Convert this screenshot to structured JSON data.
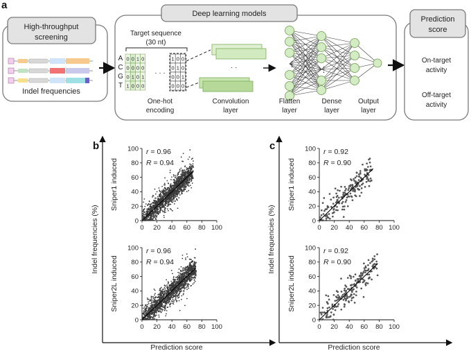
{
  "panel_a": {
    "letter": "a",
    "screening": {
      "title_line1": "High-throughput",
      "title_line2": "screening",
      "caption": "Indel frequencies"
    },
    "models": {
      "title": "Deep learning models",
      "target_line1": "Target sequence",
      "target_line2": "(30 nt)",
      "bases": [
        "A",
        "C",
        "G",
        "T"
      ],
      "matrix1": [
        [
          "0",
          "0",
          "1",
          "0"
        ],
        [
          "0",
          "0",
          "0",
          "0"
        ],
        [
          "0",
          "1",
          "0",
          "1"
        ],
        [
          "1",
          "0",
          "0",
          "0"
        ]
      ],
      "matrix2": [
        [
          "1",
          "0",
          "0"
        ],
        [
          "0",
          "1",
          "0"
        ],
        [
          "0",
          "0",
          "1"
        ],
        [
          "0",
          "0",
          "0"
        ]
      ],
      "dots": "· · ·",
      "onehot_line1": "One-hot",
      "onehot_line2": "encoding",
      "conv_line1": "Convolution",
      "conv_line2": "layer",
      "flatten_line1": "Flatten",
      "flatten_line2": "layer",
      "dense_line1": "Dense",
      "dense_line2": "layer",
      "output_line1": "Output",
      "output_line2": "layer"
    },
    "prediction": {
      "title_line1": "Prediction",
      "title_line2": "score",
      "on_line1": "On-target",
      "on_line2": "activity",
      "off_line1": "Off-target",
      "off_line2": "activity"
    }
  },
  "chart_data": [
    {
      "panel": "b",
      "type": "scatter",
      "ylabel": "Indel frequencies (%)",
      "xlabel": "Prediction score",
      "subplots": [
        {
          "row_label": "Sniper1 induced",
          "r_label": "r",
          "r": "= 0.96",
          "R_label": "R",
          "R": "= 0.94",
          "xlim": [
            0,
            100
          ],
          "ylim": [
            0,
            100
          ],
          "xticks": [
            "0",
            "20",
            "40",
            "60",
            "80",
            "100"
          ],
          "yticks": [
            "0",
            "20",
            "40",
            "60",
            "80",
            "100"
          ],
          "points_approx": 3000,
          "fit_line": [
            [
              0,
              0
            ],
            [
              68,
              68
            ]
          ]
        },
        {
          "row_label": "Sniper2L induced",
          "r_label": "r",
          "r": "= 0.96",
          "R_label": "R",
          "R": "= 0.94",
          "xlim": [
            0,
            100
          ],
          "ylim": [
            0,
            100
          ],
          "xticks": [
            "0",
            "20",
            "40",
            "60",
            "80",
            "100"
          ],
          "yticks": [
            "0",
            "20",
            "40",
            "60",
            "80",
            "100"
          ],
          "points_approx": 3000,
          "fit_line": [
            [
              0,
              0
            ],
            [
              72,
              72
            ]
          ]
        }
      ]
    },
    {
      "panel": "c",
      "type": "scatter",
      "ylabel": "Indel frequencies (%)",
      "xlabel": "Prediction score",
      "subplots": [
        {
          "row_label": "Sniper1 induced",
          "r_label": "r",
          "r": "= 0.92",
          "R_label": "R",
          "R": "= 0.90",
          "xlim": [
            0,
            100
          ],
          "ylim": [
            0,
            100
          ],
          "xticks": [
            "0",
            "20",
            "40",
            "60",
            "80",
            "100"
          ],
          "yticks": [
            "0",
            "20",
            "40",
            "60",
            "80",
            "100"
          ],
          "points_approx": 200,
          "fit_line": [
            [
              0,
              0
            ],
            [
              72,
              72
            ]
          ]
        },
        {
          "row_label": "Sniper2L induced",
          "r_label": "r",
          "r": "= 0.92",
          "R_label": "R",
          "R": "= 0.90",
          "xlim": [
            0,
            100
          ],
          "ylim": [
            0,
            100
          ],
          "xticks": [
            "0",
            "20",
            "40",
            "60",
            "80",
            "100"
          ],
          "yticks": [
            "0",
            "20",
            "40",
            "60",
            "80",
            "100"
          ],
          "points_approx": 200,
          "fit_line": [
            [
              0,
              0
            ],
            [
              78,
              78
            ]
          ]
        }
      ]
    }
  ]
}
